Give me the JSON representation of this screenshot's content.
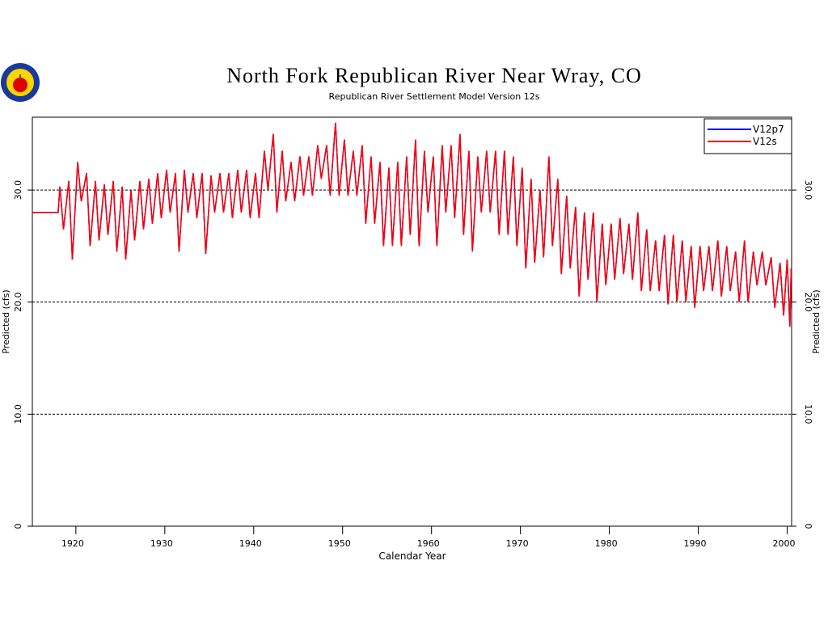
{
  "chart_data": {
    "type": "line",
    "title": "North Fork Republican River Near Wray, CO",
    "subtitle": "Republican River Settlement Model Version 12s",
    "xlabel": "Calendar Year",
    "ylabel": "Predicted (cfs)",
    "xlim": [
      1915.1,
      2000.5
    ],
    "ylim": [
      0,
      36.5
    ],
    "xticks": [
      1920,
      1930,
      1940,
      1950,
      1960,
      1970,
      1980,
      1990,
      2000
    ],
    "yticks": [
      0,
      {
        "value": 10,
        "label": "10.0"
      },
      {
        "value": 20,
        "label": "20.0"
      },
      {
        "value": 30,
        "label": "30.0"
      }
    ],
    "grid": true,
    "legend": "upper right",
    "x": [
      1915.1,
      1918.0,
      1918.2,
      1918.6,
      1919.2,
      1919.6,
      1920.2,
      1920.6,
      1921.2,
      1921.6,
      1922.2,
      1922.6,
      1923.2,
      1923.6,
      1924.2,
      1924.6,
      1925.2,
      1925.6,
      1926.2,
      1926.6,
      1927.2,
      1927.6,
      1928.2,
      1928.6,
      1929.2,
      1929.6,
      1930.2,
      1930.6,
      1931.2,
      1931.6,
      1932.2,
      1932.6,
      1933.2,
      1933.6,
      1934.2,
      1934.6,
      1935.2,
      1935.6,
      1936.2,
      1936.6,
      1937.2,
      1937.6,
      1938.2,
      1938.6,
      1939.2,
      1939.6,
      1940.2,
      1940.6,
      1941.2,
      1941.6,
      1942.2,
      1942.6,
      1943.2,
      1943.6,
      1944.2,
      1944.6,
      1945.2,
      1945.6,
      1946.2,
      1946.6,
      1947.2,
      1947.6,
      1948.2,
      1948.6,
      1949.2,
      1949.6,
      1950.2,
      1950.6,
      1951.2,
      1951.6,
      1952.2,
      1952.6,
      1953.2,
      1953.6,
      1954.2,
      1954.6,
      1955.2,
      1955.6,
      1956.2,
      1956.6,
      1957.2,
      1957.6,
      1958.2,
      1958.6,
      1959.2,
      1959.6,
      1960.2,
      1960.6,
      1961.2,
      1961.6,
      1962.2,
      1962.6,
      1963.2,
      1963.6,
      1964.2,
      1964.6,
      1965.2,
      1965.6,
      1966.2,
      1966.6,
      1967.2,
      1967.6,
      1968.2,
      1968.6,
      1969.2,
      1969.6,
      1970.2,
      1970.6,
      1971.2,
      1971.6,
      1972.2,
      1972.6,
      1973.2,
      1973.6,
      1974.2,
      1974.6,
      1975.2,
      1975.6,
      1976.2,
      1976.6,
      1977.2,
      1977.6,
      1978.2,
      1978.6,
      1979.2,
      1979.6,
      1980.2,
      1980.6,
      1981.2,
      1981.6,
      1982.2,
      1982.6,
      1983.2,
      1983.6,
      1984.2,
      1984.6,
      1985.2,
      1985.6,
      1986.2,
      1986.6,
      1987.2,
      1987.6,
      1988.2,
      1988.6,
      1989.2,
      1989.6,
      1990.2,
      1990.6,
      1991.2,
      1991.6,
      1992.2,
      1992.6,
      1993.2,
      1993.6,
      1994.2,
      1994.6,
      1995.2,
      1995.6,
      1996.2,
      1996.6,
      1997.2,
      1997.6,
      1998.2,
      1998.6,
      1999.2,
      1999.6,
      2000.0,
      2000.3,
      2000.45
    ],
    "series": [
      {
        "name": "V12p7",
        "color": "#0000ff",
        "values": [
          28,
          28,
          30.3,
          26.5,
          30.8,
          23.8,
          32.5,
          29.0,
          31.5,
          25.0,
          30.8,
          25.5,
          30.5,
          26.0,
          30.8,
          24.5,
          30.3,
          23.8,
          30.0,
          25.5,
          30.8,
          26.5,
          31.0,
          27.0,
          31.5,
          27.5,
          31.8,
          28.0,
          31.5,
          24.5,
          31.8,
          28.0,
          31.5,
          27.5,
          31.5,
          24.3,
          31.3,
          28.0,
          31.5,
          28.0,
          31.5,
          27.5,
          31.8,
          28.0,
          31.8,
          27.5,
          31.5,
          27.5,
          33.5,
          30.0,
          35.0,
          28.0,
          33.5,
          29.0,
          32.5,
          29.0,
          33.0,
          29.5,
          33.0,
          29.5,
          34.0,
          31.0,
          34.0,
          29.5,
          36.0,
          29.5,
          34.5,
          29.5,
          33.5,
          29.5,
          34.0,
          27.0,
          33.0,
          27.0,
          32.5,
          25.0,
          32.0,
          25.0,
          32.5,
          25.0,
          33.0,
          26.0,
          34.5,
          25.0,
          33.5,
          28.0,
          33.0,
          25.0,
          34.0,
          28.0,
          34.0,
          27.5,
          35.0,
          26.0,
          33.5,
          24.5,
          33.0,
          28.0,
          33.5,
          28.0,
          33.5,
          26.0,
          33.5,
          26.0,
          33.0,
          25.0,
          32.0,
          23.0,
          31.0,
          23.5,
          30.0,
          24.0,
          33.0,
          25.0,
          31.0,
          22.5,
          29.5,
          23.0,
          28.5,
          20.5,
          28.0,
          22.0,
          28.0,
          20.0,
          27.0,
          21.5,
          27.0,
          22.0,
          27.5,
          22.5,
          27.0,
          22.0,
          28.0,
          21.0,
          26.5,
          21.0,
          25.5,
          21.0,
          26.0,
          19.8,
          26.0,
          20.0,
          25.5,
          20.0,
          25.0,
          19.5,
          25.0,
          21.0,
          25.0,
          21.0,
          25.5,
          20.5,
          25.0,
          21.0,
          24.5,
          20.0,
          25.5,
          20.0,
          24.5,
          21.5,
          24.5,
          21.5,
          24.0,
          19.5,
          23.5,
          18.8,
          23.8,
          17.8,
          23.0
        ]
      },
      {
        "name": "V12s",
        "color": "#ff0000",
        "values": [
          28,
          28,
          30.3,
          26.5,
          30.8,
          23.8,
          32.5,
          29.0,
          31.5,
          25.0,
          30.8,
          25.5,
          30.5,
          26.0,
          30.8,
          24.5,
          30.3,
          23.8,
          30.0,
          25.5,
          30.8,
          26.5,
          31.0,
          27.0,
          31.5,
          27.5,
          31.8,
          28.0,
          31.5,
          24.5,
          31.8,
          28.0,
          31.5,
          27.5,
          31.5,
          24.3,
          31.3,
          28.0,
          31.5,
          28.0,
          31.5,
          27.5,
          31.8,
          28.0,
          31.8,
          27.5,
          31.5,
          27.5,
          33.5,
          30.0,
          35.0,
          28.0,
          33.5,
          29.0,
          32.5,
          29.0,
          33.0,
          29.5,
          33.0,
          29.5,
          34.0,
          31.0,
          34.0,
          29.5,
          36.0,
          29.5,
          34.5,
          29.5,
          33.5,
          29.5,
          34.0,
          27.0,
          33.0,
          27.0,
          32.5,
          25.0,
          32.0,
          25.0,
          32.5,
          25.0,
          33.0,
          26.0,
          34.5,
          25.0,
          33.5,
          28.0,
          33.0,
          25.0,
          34.0,
          28.0,
          34.0,
          27.5,
          35.0,
          26.0,
          33.5,
          24.5,
          33.0,
          28.0,
          33.5,
          28.0,
          33.5,
          26.0,
          33.5,
          26.0,
          33.0,
          25.0,
          32.0,
          23.0,
          31.0,
          23.5,
          30.0,
          24.0,
          33.0,
          25.0,
          31.0,
          22.5,
          29.5,
          23.0,
          28.5,
          20.5,
          28.0,
          22.0,
          28.0,
          20.0,
          27.0,
          21.5,
          27.0,
          22.0,
          27.5,
          22.5,
          27.0,
          22.0,
          28.0,
          21.0,
          26.5,
          21.0,
          25.5,
          21.0,
          26.0,
          19.8,
          26.0,
          20.0,
          25.5,
          20.0,
          25.0,
          19.5,
          25.0,
          21.0,
          25.0,
          21.0,
          25.5,
          20.5,
          25.0,
          21.0,
          24.5,
          20.0,
          25.5,
          20.0,
          24.5,
          21.5,
          24.5,
          21.5,
          24.0,
          19.5,
          23.5,
          18.8,
          23.8,
          17.8,
          23.0
        ]
      }
    ]
  }
}
